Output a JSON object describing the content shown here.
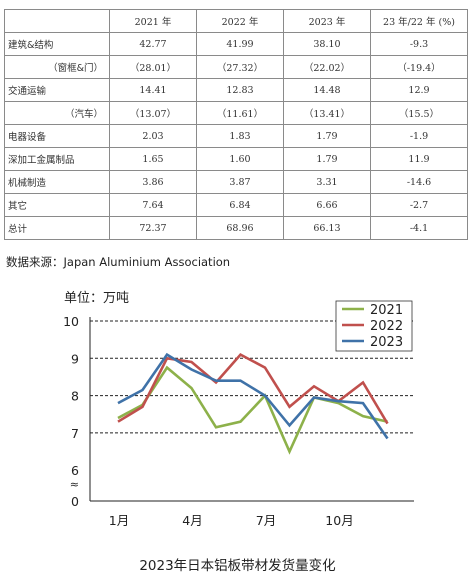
{
  "table": {
    "headers": [
      "",
      "2021 年",
      "2022 年",
      "2023 年",
      "23 年/22 年 (%)"
    ],
    "rows": [
      {
        "label": "建筑&结构",
        "sub": false,
        "cells": [
          "42.77",
          "41.99",
          "38.10",
          "-9.3"
        ]
      },
      {
        "label": "（窗框&门）",
        "sub": true,
        "cells": [
          "（28.01）",
          "（27.32）",
          "（22.02）",
          "（-19.4）"
        ]
      },
      {
        "label": "交通运输",
        "sub": false,
        "cells": [
          "14.41",
          "12.83",
          "14.48",
          "12.9"
        ]
      },
      {
        "label": "（汽车）",
        "sub": true,
        "cells": [
          "（13.07）",
          "（11.61）",
          "（13.41）",
          "（15.5）"
        ]
      },
      {
        "label": "电器设备",
        "sub": false,
        "cells": [
          "2.03",
          "1.83",
          "1.79",
          "-1.9"
        ]
      },
      {
        "label": "深加工金属制品",
        "sub": false,
        "cells": [
          "1.65",
          "1.60",
          "1.79",
          "11.9"
        ]
      },
      {
        "label": "机械制造",
        "sub": false,
        "cells": [
          "3.86",
          "3.87",
          "3.31",
          "-14.6"
        ]
      },
      {
        "label": "其它",
        "sub": false,
        "cells": [
          "7.64",
          "6.84",
          "6.66",
          "-2.7"
        ]
      },
      {
        "label": "总计",
        "sub": false,
        "cells": [
          "72.37",
          "68.96",
          "66.13",
          "-4.1"
        ]
      }
    ]
  },
  "source": "数据来源：Japan Aluminium Association",
  "chart_data": {
    "type": "line",
    "ylabel": "单位：万吨",
    "ylim": [
      6,
      10
    ],
    "y_ticks": [
      6,
      7,
      8,
      9,
      10
    ],
    "y_break_symbol": "≈",
    "y_zero_label": "0",
    "x": [
      1,
      2,
      3,
      4,
      5,
      6,
      7,
      8,
      9,
      10,
      11,
      12
    ],
    "x_tick_labels": [
      {
        "x": 1,
        "label": "1月"
      },
      {
        "x": 4,
        "label": "4月"
      },
      {
        "x": 7,
        "label": "7月"
      },
      {
        "x": 10,
        "label": "10月"
      }
    ],
    "grid": "horizontal dashed",
    "legend_position": "top-right",
    "series": [
      {
        "name": "2021",
        "color": "#8db14a",
        "values": [
          7.4,
          7.75,
          8.75,
          8.2,
          7.15,
          7.3,
          8.0,
          6.5,
          7.95,
          7.8,
          7.45,
          7.3
        ]
      },
      {
        "name": "2022",
        "color": "#c0504d",
        "values": [
          7.3,
          7.7,
          9.0,
          8.9,
          8.35,
          9.1,
          8.75,
          7.7,
          8.25,
          7.85,
          8.35,
          7.25
        ]
      },
      {
        "name": "2023",
        "color": "#3f72a8",
        "values": [
          7.8,
          8.15,
          9.1,
          8.7,
          8.4,
          8.4,
          8.0,
          7.2,
          7.95,
          7.85,
          7.8,
          6.85
        ]
      }
    ]
  },
  "caption": "2023年日本铝板带材发货量变化"
}
